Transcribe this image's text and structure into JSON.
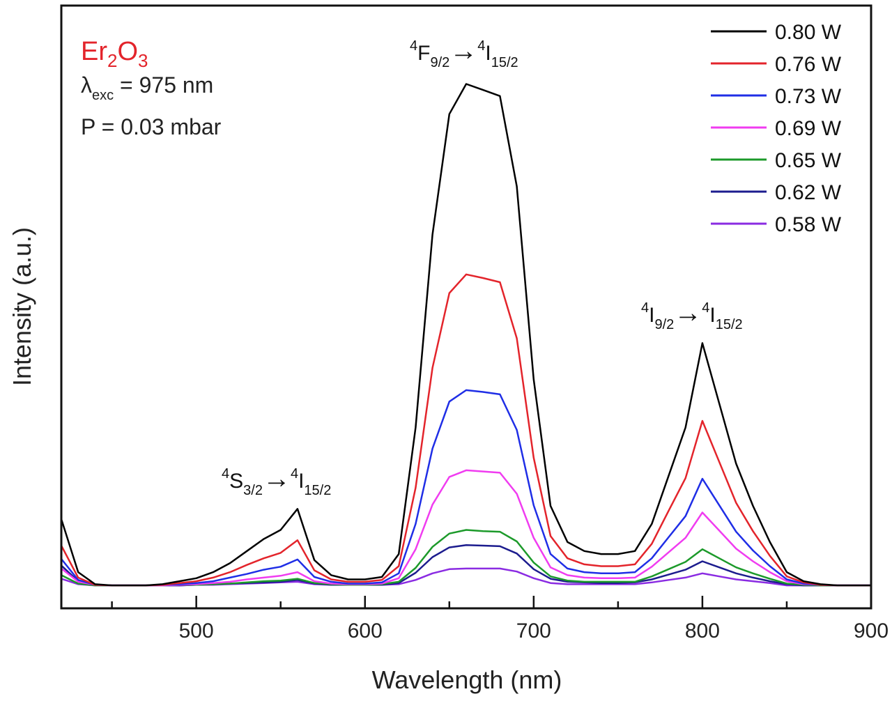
{
  "chart_data": {
    "type": "line",
    "xlabel": "Wavelength (nm)",
    "ylabel": "Intensity (a.u.)",
    "xlim": [
      420,
      900
    ],
    "ylim": [
      0,
      100
    ],
    "xticks": [
      500,
      600,
      700,
      800,
      900
    ],
    "xticks_minor": [
      450,
      550,
      650,
      750,
      850
    ],
    "y_tick_labels_shown": false,
    "grid": false,
    "legend_position": "top-right",
    "x": [
      420,
      430,
      440,
      450,
      460,
      470,
      480,
      490,
      500,
      510,
      520,
      530,
      540,
      550,
      560,
      570,
      580,
      590,
      600,
      610,
      620,
      630,
      640,
      650,
      660,
      670,
      680,
      690,
      700,
      710,
      720,
      730,
      740,
      750,
      760,
      770,
      780,
      790,
      800,
      810,
      820,
      830,
      840,
      850,
      860,
      870,
      880,
      890,
      900
    ],
    "series": [
      {
        "name": "0.80 W",
        "color": "#000000",
        "values": [
          14.8,
          6.0,
          4.0,
          3.8,
          3.8,
          3.8,
          4.0,
          4.5,
          5.0,
          6.0,
          7.5,
          9.5,
          11.5,
          13.0,
          16.5,
          8.0,
          5.5,
          4.8,
          4.8,
          5.2,
          9.0,
          30.0,
          62.0,
          82.0,
          87.0,
          86.0,
          85.0,
          70.0,
          38.0,
          17.0,
          11.0,
          9.5,
          9.0,
          9.0,
          9.5,
          14.0,
          22.0,
          30.0,
          44.0,
          34.0,
          24.0,
          17.0,
          11.0,
          6.0,
          4.5,
          4.0,
          3.8,
          3.8,
          3.8
        ]
      },
      {
        "name": "0.76 W",
        "color": "#e3242b",
        "values": [
          10.4,
          5.1,
          3.9,
          3.8,
          3.8,
          3.8,
          3.9,
          4.2,
          4.5,
          5.1,
          6.0,
          7.2,
          8.3,
          9.2,
          11.3,
          6.3,
          4.8,
          4.4,
          4.4,
          4.7,
          7.0,
          20.0,
          39.9,
          52.3,
          55.4,
          54.8,
          54.1,
          44.8,
          25.0,
          12.0,
          8.3,
          7.3,
          7.0,
          7.0,
          7.3,
          10.7,
          16.2,
          21.6,
          31.1,
          24.3,
          17.5,
          12.8,
          8.7,
          5.3,
          4.3,
          3.9,
          3.8,
          3.8,
          3.8
        ]
      },
      {
        "name": "0.73 W",
        "color": "#1f2ee6",
        "values": [
          8.2,
          4.7,
          3.9,
          3.8,
          3.8,
          3.8,
          3.9,
          4.0,
          4.2,
          4.5,
          5.1,
          5.7,
          6.4,
          6.9,
          8.1,
          5.2,
          4.4,
          4.1,
          4.1,
          4.3,
          5.8,
          14.0,
          26.5,
          34.3,
          36.2,
          35.9,
          35.5,
          29.6,
          17.1,
          9.0,
          6.6,
          6.0,
          5.8,
          5.8,
          6.0,
          8.3,
          11.8,
          15.3,
          21.5,
          17.1,
          12.7,
          9.6,
          7.0,
          4.8,
          4.1,
          3.9,
          3.8,
          3.8,
          3.8
        ]
      },
      {
        "name": "0.69 W",
        "color": "#f03cf0",
        "values": [
          6.6,
          4.4,
          3.9,
          3.8,
          3.8,
          3.8,
          3.8,
          3.9,
          4.0,
          4.2,
          4.4,
          4.8,
          5.1,
          5.4,
          6.0,
          4.5,
          4.1,
          4.0,
          4.0,
          4.1,
          5.0,
          9.8,
          17.2,
          21.8,
          22.9,
          22.7,
          22.5,
          19.0,
          11.7,
          6.8,
          5.5,
          5.1,
          5.0,
          5.0,
          5.1,
          6.9,
          9.3,
          11.7,
          15.9,
          12.9,
          9.9,
          7.8,
          6.0,
          4.5,
          4.0,
          3.9,
          3.8,
          3.8,
          3.8
        ]
      },
      {
        "name": "0.65 W",
        "color": "#1c9a2a",
        "values": [
          5.5,
          4.1,
          3.8,
          3.8,
          3.8,
          3.8,
          3.8,
          3.9,
          3.9,
          4.0,
          4.1,
          4.3,
          4.5,
          4.6,
          4.9,
          4.2,
          4.0,
          3.9,
          3.9,
          4.0,
          4.4,
          6.7,
          10.2,
          12.4,
          13.0,
          12.8,
          12.7,
          11.1,
          7.6,
          5.3,
          4.6,
          4.4,
          4.4,
          4.4,
          4.4,
          5.3,
          6.5,
          7.7,
          9.8,
          8.3,
          6.8,
          5.8,
          4.9,
          4.1,
          3.9,
          3.8,
          3.8,
          3.8,
          3.8
        ]
      },
      {
        "name": "0.62 W",
        "color": "#1c1c8e",
        "values": [
          7.1,
          4.5,
          3.9,
          3.8,
          3.8,
          3.8,
          3.8,
          3.8,
          3.9,
          4.0,
          4.1,
          4.2,
          4.3,
          4.4,
          4.7,
          4.1,
          3.9,
          3.9,
          3.9,
          3.9,
          4.2,
          5.9,
          8.5,
          10.1,
          10.5,
          10.4,
          10.3,
          9.1,
          6.5,
          4.9,
          4.4,
          4.3,
          4.2,
          4.2,
          4.3,
          4.8,
          5.6,
          6.4,
          7.8,
          6.8,
          5.8,
          5.1,
          4.5,
          4.0,
          3.8,
          3.8,
          3.8,
          3.8,
          3.8
        ]
      },
      {
        "name": "0.58 W",
        "color": "#8a2be2",
        "values": [
          4.9,
          4.0,
          3.8,
          3.8,
          3.8,
          3.8,
          3.8,
          3.8,
          3.9,
          3.9,
          4.0,
          4.1,
          4.2,
          4.3,
          4.4,
          4.0,
          3.9,
          3.9,
          3.9,
          3.9,
          4.0,
          4.7,
          5.8,
          6.5,
          6.6,
          6.6,
          6.6,
          6.1,
          5.0,
          4.2,
          4.0,
          4.0,
          4.0,
          4.0,
          4.0,
          4.3,
          4.7,
          5.1,
          5.8,
          5.3,
          4.8,
          4.5,
          4.2,
          3.8,
          3.8,
          3.8,
          3.8,
          3.8,
          3.8
        ]
      }
    ],
    "info_box": {
      "sample": {
        "base1": "Er",
        "sub1": "2",
        "base2": "O",
        "sub2": "3",
        "color": "#e3242b"
      },
      "excitation": {
        "symbol": "λ",
        "sub": "exc",
        "rest": " = 975 nm"
      },
      "pressure": "P = 0.03 mbar"
    },
    "annotations": [
      {
        "sup1": "4",
        "l1": "S",
        "sub1": "3/2",
        "arrow": "→",
        "sup2": "4",
        "l2": "I",
        "sub2": "15/2"
      },
      {
        "sup1": "4",
        "l1": "F",
        "sub1": "9/2",
        "arrow": "→",
        "sup2": "4",
        "l2": "I",
        "sub2": "15/2"
      },
      {
        "sup1": "4",
        "l1": "I",
        "sub1": "9/2",
        "arrow": "→",
        "sup2": "4",
        "l2": "I",
        "sub2": "15/2"
      }
    ]
  }
}
